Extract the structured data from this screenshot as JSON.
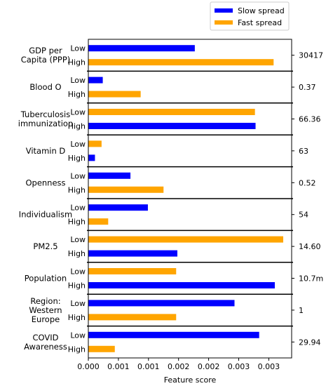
{
  "chart_data": {
    "type": "bar",
    "orientation": "horizontal",
    "xlabel": "Feature score",
    "xlim": [
      0,
      0.00338
    ],
    "x_ticks": [
      "0.000",
      "0.001",
      "0.001",
      "0.002",
      "0.002",
      "0.003",
      "0.003"
    ],
    "legend": {
      "placement": "top-right",
      "items": [
        {
          "name": "Slow spread",
          "color": "#0000ff"
        },
        {
          "name": "Fast spread",
          "color": "#ffa500"
        }
      ]
    },
    "colors": {
      "slow": "#0000ff",
      "fast": "#ffa500"
    },
    "groups": [
      {
        "label": "GDP per\nCapita (PPP)",
        "threshold": "30417",
        "bars": [
          {
            "level": "Low",
            "spread": "slow",
            "value": 0.00177
          },
          {
            "level": "High",
            "spread": "fast",
            "value": 0.00308
          }
        ]
      },
      {
        "label": "Blood O",
        "threshold": "0.37",
        "bars": [
          {
            "level": "Low",
            "spread": "slow",
            "value": 0.00024
          },
          {
            "level": "High",
            "spread": "fast",
            "value": 0.00087
          }
        ]
      },
      {
        "label": "Tuberculosis\nimmunization",
        "threshold": "66.36",
        "bars": [
          {
            "level": "Low",
            "spread": "fast",
            "value": 0.00277
          },
          {
            "level": "High",
            "spread": "slow",
            "value": 0.00278
          }
        ]
      },
      {
        "label": "Vitamin D",
        "threshold": "63",
        "bars": [
          {
            "level": "Low",
            "spread": "fast",
            "value": 0.00022
          },
          {
            "level": "High",
            "spread": "slow",
            "value": 0.00011
          }
        ]
      },
      {
        "label": "Openness",
        "threshold": "0.52",
        "bars": [
          {
            "level": "Low",
            "spread": "slow",
            "value": 0.0007
          },
          {
            "level": "High",
            "spread": "fast",
            "value": 0.00125
          }
        ]
      },
      {
        "label": "Individualism",
        "threshold": "54",
        "bars": [
          {
            "level": "Low",
            "spread": "slow",
            "value": 0.00099
          },
          {
            "level": "High",
            "spread": "fast",
            "value": 0.00033
          }
        ]
      },
      {
        "label": "PM2.5",
        "threshold": "14.60",
        "bars": [
          {
            "level": "Low",
            "spread": "fast",
            "value": 0.00324
          },
          {
            "level": "High",
            "spread": "slow",
            "value": 0.00148
          }
        ]
      },
      {
        "label": "Population",
        "threshold": "10.7m",
        "bars": [
          {
            "level": "Low",
            "spread": "fast",
            "value": 0.00146
          },
          {
            "level": "High",
            "spread": "slow",
            "value": 0.0031
          }
        ]
      },
      {
        "label": "Region:\nWestern\nEurope",
        "threshold": "1",
        "bars": [
          {
            "level": "Low",
            "spread": "slow",
            "value": 0.00243
          },
          {
            "level": "High",
            "spread": "fast",
            "value": 0.00146
          }
        ]
      },
      {
        "label": "COVID\nAwareness",
        "threshold": "29.94",
        "bars": [
          {
            "level": "Low",
            "spread": "slow",
            "value": 0.00284
          },
          {
            "level": "High",
            "spread": "fast",
            "value": 0.00044
          }
        ]
      }
    ]
  }
}
